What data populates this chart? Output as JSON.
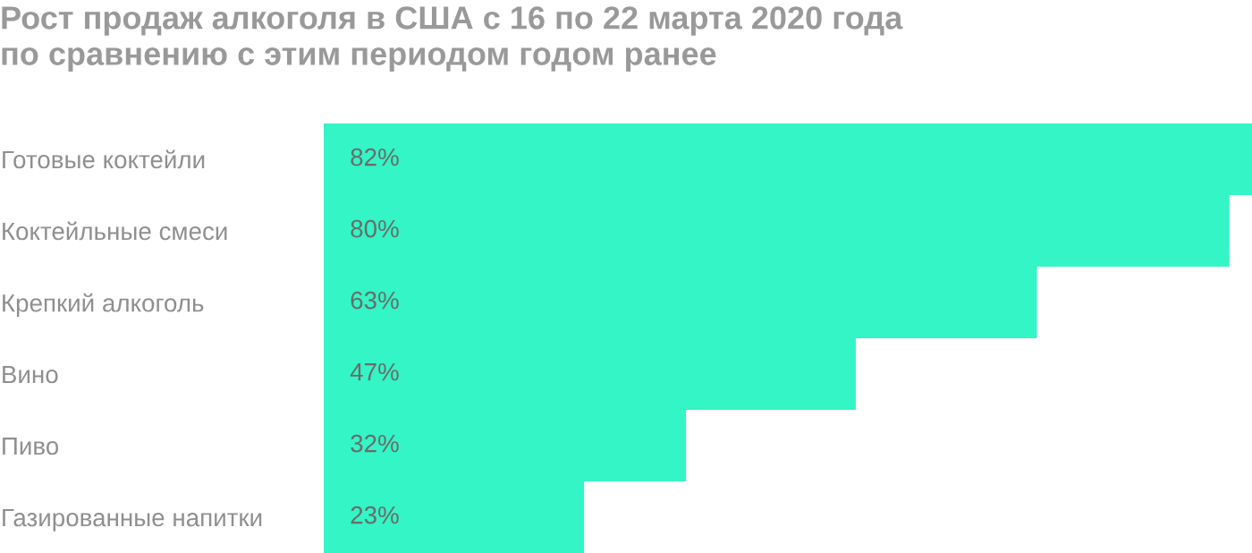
{
  "chart_data": {
    "type": "bar",
    "orientation": "horizontal",
    "title": "Рост продаж алкоголя в США с 16 по 22 марта 2020 года\nпо сравнению с этим периодом годом ранее",
    "categories": [
      "Готовые коктейли",
      "Коктейльные смеси",
      "Крепкий алкоголь",
      "Вино",
      "Пиво",
      "Газированные напитки"
    ],
    "values": [
      82,
      80,
      63,
      47,
      32,
      23
    ],
    "value_labels": [
      "82%",
      "80%",
      "63%",
      "47%",
      "32%",
      "23%"
    ],
    "color": "#33f5c5",
    "tick_labels": "y"
  }
}
